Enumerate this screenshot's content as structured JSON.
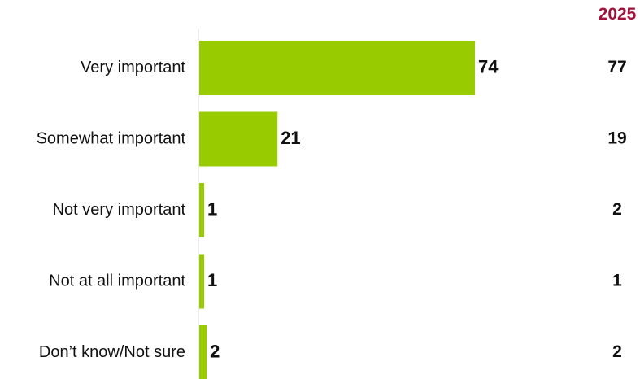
{
  "chart_data": {
    "type": "bar",
    "orientation": "horizontal",
    "categories": [
      "Very important",
      "Somewhat important",
      "Not very important",
      "Not at all important",
      "Don’t know/Not sure"
    ],
    "values": [
      74,
      21,
      1,
      1,
      2
    ],
    "comparison": {
      "header": "2025",
      "values": [
        77,
        19,
        2,
        1,
        2
      ]
    },
    "xlim": [
      0,
      74
    ],
    "grid": false,
    "legend": "none"
  },
  "colors": {
    "bar": "#99cc00",
    "header": "#a0143c",
    "axis": "#d9d9d9",
    "text": "#111111"
  }
}
